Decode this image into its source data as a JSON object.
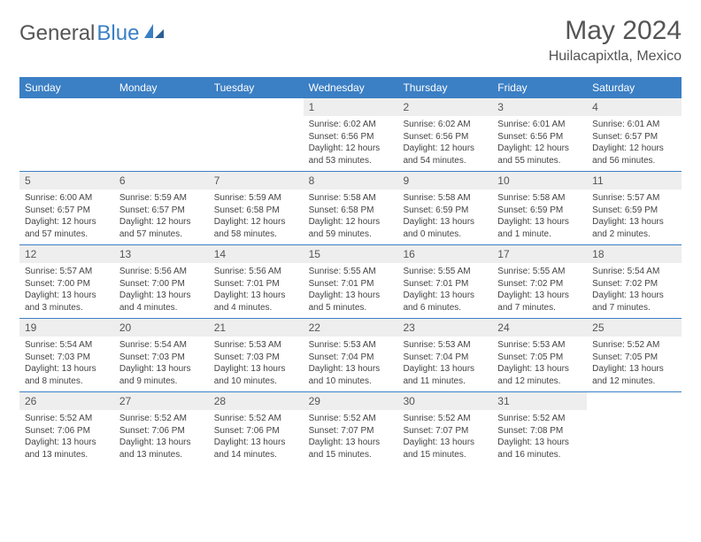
{
  "logo": {
    "text1": "General",
    "text2": "Blue"
  },
  "title": "May 2024",
  "location": "Huilacapixtla, Mexico",
  "colors": {
    "header_bg": "#3b7fc4",
    "header_text": "#ffffff",
    "daynum_bg": "#eeeeee",
    "text": "#555555",
    "border": "#3b7fc4"
  },
  "weekdays": [
    "Sunday",
    "Monday",
    "Tuesday",
    "Wednesday",
    "Thursday",
    "Friday",
    "Saturday"
  ],
  "weeks": [
    [
      {
        "n": "",
        "lines": []
      },
      {
        "n": "",
        "lines": []
      },
      {
        "n": "",
        "lines": []
      },
      {
        "n": "1",
        "lines": [
          "Sunrise: 6:02 AM",
          "Sunset: 6:56 PM",
          "Daylight: 12 hours",
          "and 53 minutes."
        ]
      },
      {
        "n": "2",
        "lines": [
          "Sunrise: 6:02 AM",
          "Sunset: 6:56 PM",
          "Daylight: 12 hours",
          "and 54 minutes."
        ]
      },
      {
        "n": "3",
        "lines": [
          "Sunrise: 6:01 AM",
          "Sunset: 6:56 PM",
          "Daylight: 12 hours",
          "and 55 minutes."
        ]
      },
      {
        "n": "4",
        "lines": [
          "Sunrise: 6:01 AM",
          "Sunset: 6:57 PM",
          "Daylight: 12 hours",
          "and 56 minutes."
        ]
      }
    ],
    [
      {
        "n": "5",
        "lines": [
          "Sunrise: 6:00 AM",
          "Sunset: 6:57 PM",
          "Daylight: 12 hours",
          "and 57 minutes."
        ]
      },
      {
        "n": "6",
        "lines": [
          "Sunrise: 5:59 AM",
          "Sunset: 6:57 PM",
          "Daylight: 12 hours",
          "and 57 minutes."
        ]
      },
      {
        "n": "7",
        "lines": [
          "Sunrise: 5:59 AM",
          "Sunset: 6:58 PM",
          "Daylight: 12 hours",
          "and 58 minutes."
        ]
      },
      {
        "n": "8",
        "lines": [
          "Sunrise: 5:58 AM",
          "Sunset: 6:58 PM",
          "Daylight: 12 hours",
          "and 59 minutes."
        ]
      },
      {
        "n": "9",
        "lines": [
          "Sunrise: 5:58 AM",
          "Sunset: 6:59 PM",
          "Daylight: 13 hours",
          "and 0 minutes."
        ]
      },
      {
        "n": "10",
        "lines": [
          "Sunrise: 5:58 AM",
          "Sunset: 6:59 PM",
          "Daylight: 13 hours",
          "and 1 minute."
        ]
      },
      {
        "n": "11",
        "lines": [
          "Sunrise: 5:57 AM",
          "Sunset: 6:59 PM",
          "Daylight: 13 hours",
          "and 2 minutes."
        ]
      }
    ],
    [
      {
        "n": "12",
        "lines": [
          "Sunrise: 5:57 AM",
          "Sunset: 7:00 PM",
          "Daylight: 13 hours",
          "and 3 minutes."
        ]
      },
      {
        "n": "13",
        "lines": [
          "Sunrise: 5:56 AM",
          "Sunset: 7:00 PM",
          "Daylight: 13 hours",
          "and 4 minutes."
        ]
      },
      {
        "n": "14",
        "lines": [
          "Sunrise: 5:56 AM",
          "Sunset: 7:01 PM",
          "Daylight: 13 hours",
          "and 4 minutes."
        ]
      },
      {
        "n": "15",
        "lines": [
          "Sunrise: 5:55 AM",
          "Sunset: 7:01 PM",
          "Daylight: 13 hours",
          "and 5 minutes."
        ]
      },
      {
        "n": "16",
        "lines": [
          "Sunrise: 5:55 AM",
          "Sunset: 7:01 PM",
          "Daylight: 13 hours",
          "and 6 minutes."
        ]
      },
      {
        "n": "17",
        "lines": [
          "Sunrise: 5:55 AM",
          "Sunset: 7:02 PM",
          "Daylight: 13 hours",
          "and 7 minutes."
        ]
      },
      {
        "n": "18",
        "lines": [
          "Sunrise: 5:54 AM",
          "Sunset: 7:02 PM",
          "Daylight: 13 hours",
          "and 7 minutes."
        ]
      }
    ],
    [
      {
        "n": "19",
        "lines": [
          "Sunrise: 5:54 AM",
          "Sunset: 7:03 PM",
          "Daylight: 13 hours",
          "and 8 minutes."
        ]
      },
      {
        "n": "20",
        "lines": [
          "Sunrise: 5:54 AM",
          "Sunset: 7:03 PM",
          "Daylight: 13 hours",
          "and 9 minutes."
        ]
      },
      {
        "n": "21",
        "lines": [
          "Sunrise: 5:53 AM",
          "Sunset: 7:03 PM",
          "Daylight: 13 hours",
          "and 10 minutes."
        ]
      },
      {
        "n": "22",
        "lines": [
          "Sunrise: 5:53 AM",
          "Sunset: 7:04 PM",
          "Daylight: 13 hours",
          "and 10 minutes."
        ]
      },
      {
        "n": "23",
        "lines": [
          "Sunrise: 5:53 AM",
          "Sunset: 7:04 PM",
          "Daylight: 13 hours",
          "and 11 minutes."
        ]
      },
      {
        "n": "24",
        "lines": [
          "Sunrise: 5:53 AM",
          "Sunset: 7:05 PM",
          "Daylight: 13 hours",
          "and 12 minutes."
        ]
      },
      {
        "n": "25",
        "lines": [
          "Sunrise: 5:52 AM",
          "Sunset: 7:05 PM",
          "Daylight: 13 hours",
          "and 12 minutes."
        ]
      }
    ],
    [
      {
        "n": "26",
        "lines": [
          "Sunrise: 5:52 AM",
          "Sunset: 7:06 PM",
          "Daylight: 13 hours",
          "and 13 minutes."
        ]
      },
      {
        "n": "27",
        "lines": [
          "Sunrise: 5:52 AM",
          "Sunset: 7:06 PM",
          "Daylight: 13 hours",
          "and 13 minutes."
        ]
      },
      {
        "n": "28",
        "lines": [
          "Sunrise: 5:52 AM",
          "Sunset: 7:06 PM",
          "Daylight: 13 hours",
          "and 14 minutes."
        ]
      },
      {
        "n": "29",
        "lines": [
          "Sunrise: 5:52 AM",
          "Sunset: 7:07 PM",
          "Daylight: 13 hours",
          "and 15 minutes."
        ]
      },
      {
        "n": "30",
        "lines": [
          "Sunrise: 5:52 AM",
          "Sunset: 7:07 PM",
          "Daylight: 13 hours",
          "and 15 minutes."
        ]
      },
      {
        "n": "31",
        "lines": [
          "Sunrise: 5:52 AM",
          "Sunset: 7:08 PM",
          "Daylight: 13 hours",
          "and 16 minutes."
        ]
      },
      {
        "n": "",
        "lines": []
      }
    ]
  ]
}
